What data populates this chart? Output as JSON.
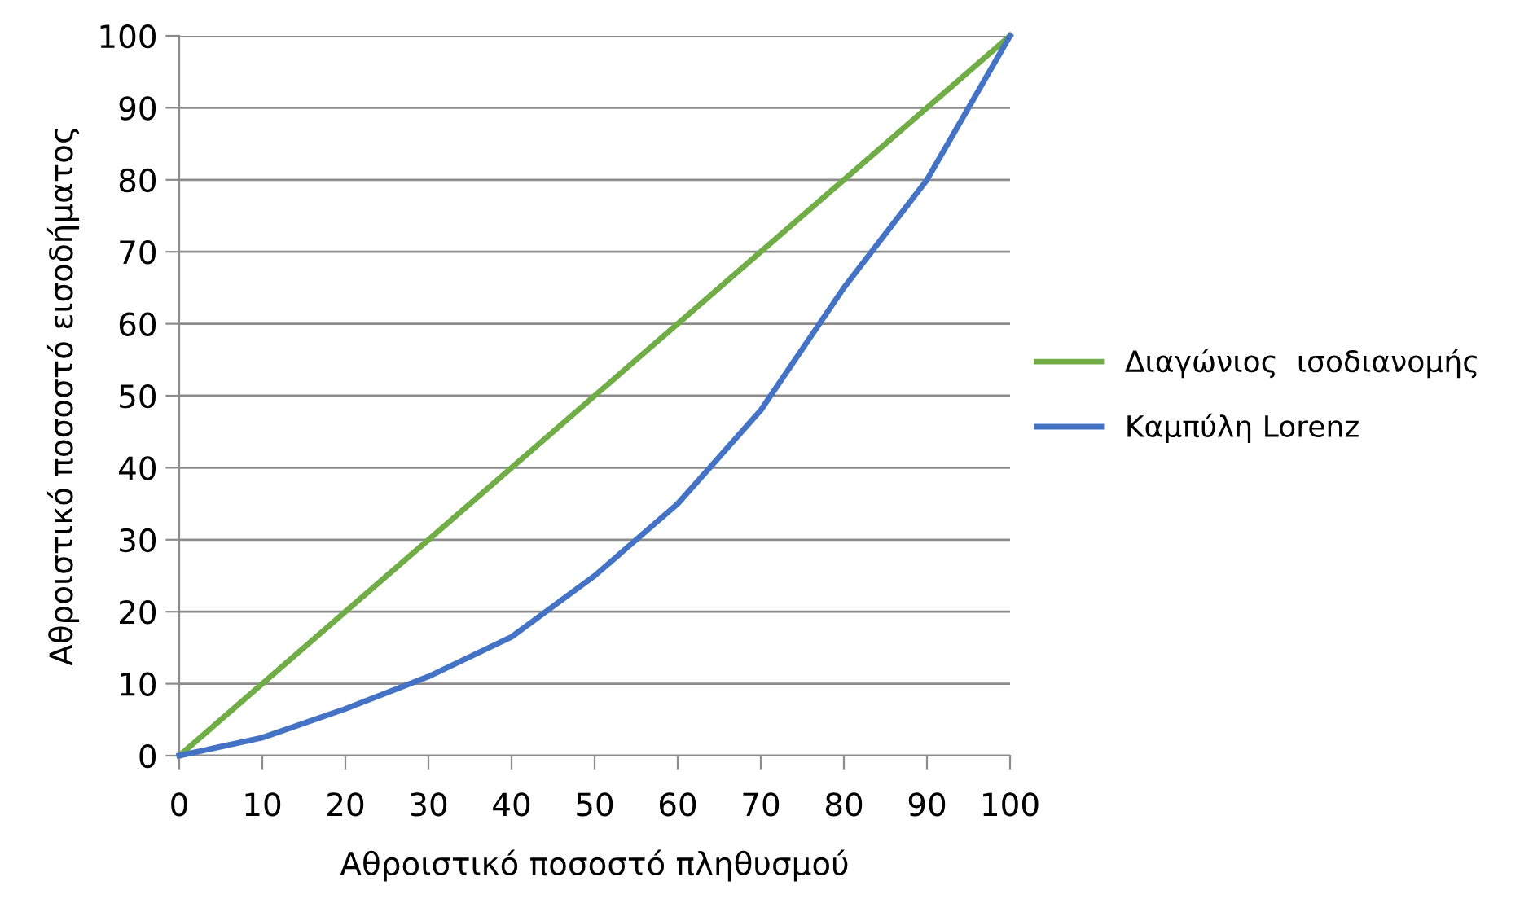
{
  "chart_data": {
    "type": "line",
    "xlabel": "Αθροιστικό ποσοστό πληθυσμού",
    "ylabel": "Αθροιστικό ποσοστό εισοδήματος",
    "x": [
      0,
      10,
      20,
      30,
      40,
      50,
      60,
      70,
      80,
      90,
      100
    ],
    "series": [
      {
        "name": "Διαγώνιος  ισοδιανομής",
        "color": "#70ad47",
        "values": [
          0,
          10,
          20,
          30,
          40,
          50,
          60,
          70,
          80,
          90,
          100
        ]
      },
      {
        "name": "Καμπύλη Lorenz",
        "color": "#4472c4",
        "values": [
          0,
          2.5,
          6.5,
          11,
          16.5,
          25,
          35,
          48,
          65,
          80,
          100
        ]
      }
    ],
    "xlim": [
      0,
      100
    ],
    "ylim": [
      0,
      100
    ],
    "xticks": [
      0,
      10,
      20,
      30,
      40,
      50,
      60,
      70,
      80,
      90,
      100
    ],
    "yticks": [
      0,
      10,
      20,
      30,
      40,
      50,
      60,
      70,
      80,
      90,
      100
    ],
    "grid": "y",
    "legend": "right",
    "marker": "none",
    "line_style": "solid"
  }
}
